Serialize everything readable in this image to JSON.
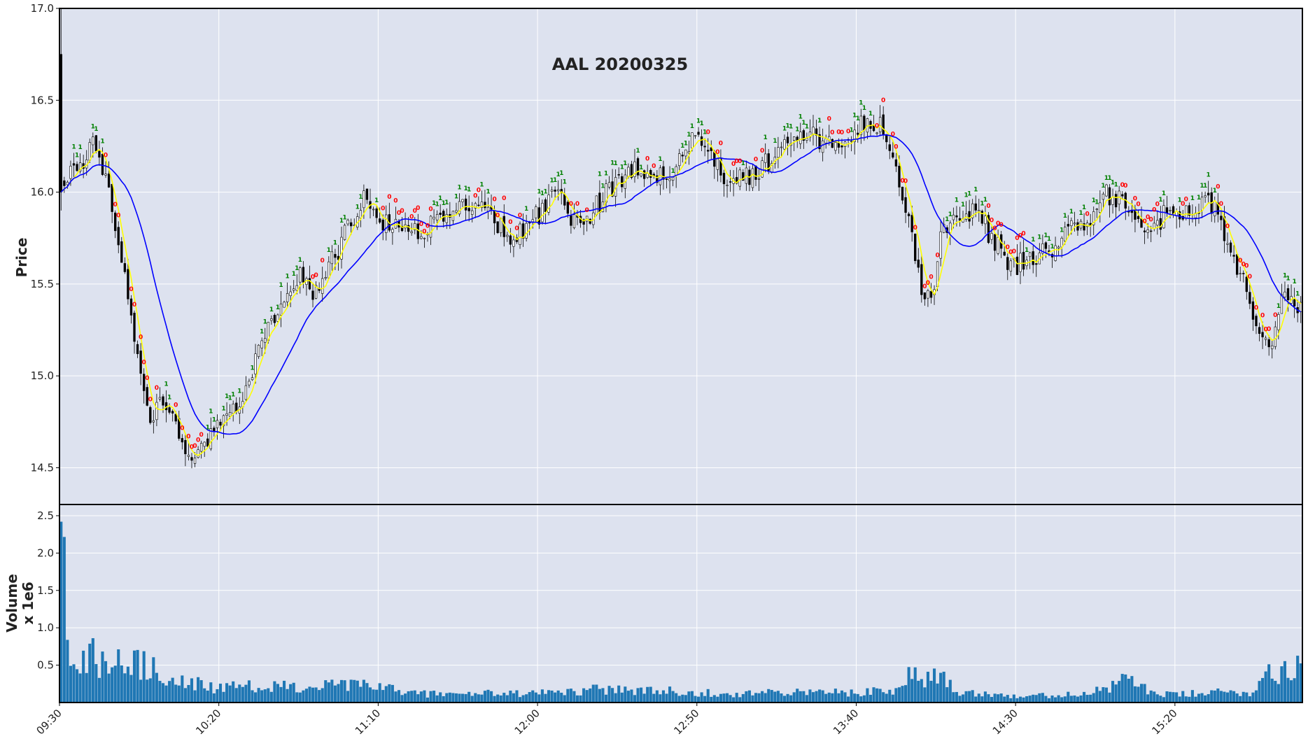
{
  "chart_data": {
    "type": "candlestick",
    "title": "AAL 20200325",
    "price_panel": {
      "ylabel": "Price",
      "ylim": [
        14.3,
        17.0
      ],
      "yticks": [
        "14.5",
        "15.0",
        "15.5",
        "16.0",
        "16.5",
        "17.0"
      ],
      "background": "#dde2ef",
      "grid": true
    },
    "volume_panel": {
      "ylabel": "Volume",
      "ylabel_line2": "x 1e6",
      "ylim": [
        0,
        2.65
      ],
      "yticks": [
        "0.5",
        "1.0",
        "1.5",
        "2.0",
        "2.5"
      ],
      "bar_color": "#1f77b4"
    },
    "x_axis": {
      "start": "09:30",
      "end": "15:59",
      "interval_minutes": 1,
      "ticks": [
        "09:30",
        "10:20",
        "11:10",
        "12:00",
        "12:50",
        "13:40",
        "14:30",
        "15:20"
      ]
    },
    "price_anchors": [
      {
        "t": "09:30",
        "p": 16.05
      },
      {
        "t": "09:36",
        "p": 16.15
      },
      {
        "t": "09:40",
        "p": 16.25
      },
      {
        "t": "09:44",
        "p": 16.05
      },
      {
        "t": "09:48",
        "p": 15.75
      },
      {
        "t": "09:52",
        "p": 15.3
      },
      {
        "t": "09:55",
        "p": 15.0
      },
      {
        "t": "09:58",
        "p": 14.75
      },
      {
        "t": "10:02",
        "p": 14.85
      },
      {
        "t": "10:06",
        "p": 14.7
      },
      {
        "t": "10:10",
        "p": 14.55
      },
      {
        "t": "10:14",
        "p": 14.6
      },
      {
        "t": "10:18",
        "p": 14.72
      },
      {
        "t": "10:22",
        "p": 14.8
      },
      {
        "t": "10:26",
        "p": 14.85
      },
      {
        "t": "10:30",
        "p": 15.05
      },
      {
        "t": "10:35",
        "p": 15.25
      },
      {
        "t": "10:40",
        "p": 15.4
      },
      {
        "t": "10:45",
        "p": 15.55
      },
      {
        "t": "10:50",
        "p": 15.45
      },
      {
        "t": "10:56",
        "p": 15.65
      },
      {
        "t": "11:00",
        "p": 15.8
      },
      {
        "t": "11:05",
        "p": 15.95
      },
      {
        "t": "11:10",
        "p": 15.85
      },
      {
        "t": "11:15",
        "p": 15.82
      },
      {
        "t": "11:22",
        "p": 15.78
      },
      {
        "t": "11:30",
        "p": 15.88
      },
      {
        "t": "11:38",
        "p": 15.95
      },
      {
        "t": "11:45",
        "p": 15.85
      },
      {
        "t": "11:52",
        "p": 15.75
      },
      {
        "t": "12:00",
        "p": 15.88
      },
      {
        "t": "12:05",
        "p": 16.02
      },
      {
        "t": "12:10",
        "p": 15.82
      },
      {
        "t": "12:15",
        "p": 15.85
      },
      {
        "t": "12:22",
        "p": 16.02
      },
      {
        "t": "12:28",
        "p": 16.12
      },
      {
        "t": "12:32",
        "p": 16.15
      },
      {
        "t": "12:36",
        "p": 16.05
      },
      {
        "t": "12:42",
        "p": 16.12
      },
      {
        "t": "12:48",
        "p": 16.28
      },
      {
        "t": "12:52",
        "p": 16.3
      },
      {
        "t": "12:57",
        "p": 16.08
      },
      {
        "t": "13:02",
        "p": 16.05
      },
      {
        "t": "13:08",
        "p": 16.12
      },
      {
        "t": "13:14",
        "p": 16.2
      },
      {
        "t": "13:20",
        "p": 16.28
      },
      {
        "t": "13:26",
        "p": 16.3
      },
      {
        "t": "13:32",
        "p": 16.28
      },
      {
        "t": "13:38",
        "p": 16.32
      },
      {
        "t": "13:44",
        "p": 16.4
      },
      {
        "t": "13:48",
        "p": 16.35
      },
      {
        "t": "13:52",
        "p": 16.15
      },
      {
        "t": "13:56",
        "p": 15.85
      },
      {
        "t": "14:00",
        "p": 15.45
      },
      {
        "t": "14:03",
        "p": 15.4
      },
      {
        "t": "14:06",
        "p": 15.75
      },
      {
        "t": "14:12",
        "p": 15.85
      },
      {
        "t": "14:17",
        "p": 15.92
      },
      {
        "t": "14:22",
        "p": 15.75
      },
      {
        "t": "14:28",
        "p": 15.6
      },
      {
        "t": "14:34",
        "p": 15.62
      },
      {
        "t": "14:40",
        "p": 15.68
      },
      {
        "t": "14:46",
        "p": 15.82
      },
      {
        "t": "14:52",
        "p": 15.85
      },
      {
        "t": "14:58",
        "p": 15.98
      },
      {
        "t": "15:02",
        "p": 15.95
      },
      {
        "t": "15:06",
        "p": 15.85
      },
      {
        "t": "15:12",
        "p": 15.82
      },
      {
        "t": "15:17",
        "p": 15.88
      },
      {
        "t": "15:22",
        "p": 15.9
      },
      {
        "t": "15:28",
        "p": 15.95
      },
      {
        "t": "15:32",
        "p": 15.9
      },
      {
        "t": "15:36",
        "p": 15.7
      },
      {
        "t": "15:40",
        "p": 15.55
      },
      {
        "t": "15:45",
        "p": 15.3
      },
      {
        "t": "15:50",
        "p": 15.15
      },
      {
        "t": "15:53",
        "p": 15.4
      },
      {
        "t": "15:56",
        "p": 15.45
      },
      {
        "t": "15:59",
        "p": 15.35
      }
    ],
    "volume_anchors": [
      {
        "t": "09:30",
        "v": 2.42
      },
      {
        "t": "09:32",
        "v": 0.75
      },
      {
        "t": "09:45",
        "v": 0.5
      },
      {
        "t": "09:50",
        "v": 0.6
      },
      {
        "t": "09:58",
        "v": 0.45
      },
      {
        "t": "10:05",
        "v": 0.3
      },
      {
        "t": "10:20",
        "v": 0.2
      },
      {
        "t": "11:00",
        "v": 0.22
      },
      {
        "t": "11:10",
        "v": 0.22
      },
      {
        "t": "11:20",
        "v": 0.12
      },
      {
        "t": "12:00",
        "v": 0.12
      },
      {
        "t": "12:20",
        "v": 0.18
      },
      {
        "t": "13:00",
        "v": 0.12
      },
      {
        "t": "13:50",
        "v": 0.15
      },
      {
        "t": "13:55",
        "v": 0.35
      },
      {
        "t": "14:08",
        "v": 0.35
      },
      {
        "t": "14:12",
        "v": 0.15
      },
      {
        "t": "14:35",
        "v": 0.08
      },
      {
        "t": "14:55",
        "v": 0.15
      },
      {
        "t": "15:05",
        "v": 0.3
      },
      {
        "t": "15:15",
        "v": 0.1
      },
      {
        "t": "15:45",
        "v": 0.15
      },
      {
        "t": "15:48",
        "v": 0.4
      },
      {
        "t": "15:59",
        "v": 0.5
      }
    ],
    "overlays": [
      {
        "role": "fast moving average",
        "window": 5,
        "color": "#ffff00"
      },
      {
        "role": "slow moving average",
        "window": 20,
        "color": "#0000ff"
      }
    ],
    "markers": [
      {
        "text": "0",
        "color": "#ff0000",
        "placement": "above highs in down phases"
      },
      {
        "text": "1",
        "color": "#008000",
        "placement": "above highs in up phases"
      }
    ]
  }
}
